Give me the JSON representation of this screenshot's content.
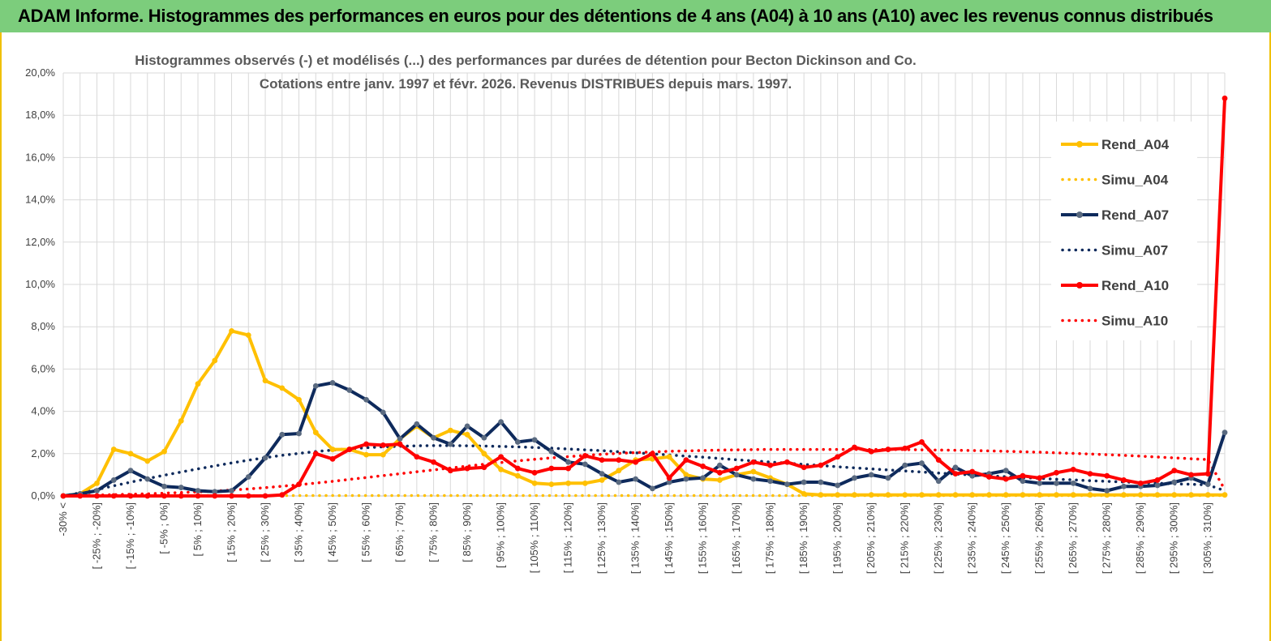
{
  "header": {
    "title": "ADAM Informe. Histogrammes des performances en euros pour des détentions de 4 ans (A04) à 10 ans (A10) avec les revenus connus distribués"
  },
  "colors": {
    "banner": "#7ccd7c",
    "A04": "#ffc000",
    "A07": "#0e2a5c",
    "A10": "#ff0000",
    "grid": "#d9d9d9"
  },
  "chart_data": {
    "type": "line",
    "title": [
      "Histogrammes observés (-)  et modélisés (...) des performances par durées de détention pour Becton Dickinson and Co.",
      "Cotations entre janv. 1997 et févr. 2026. Revenus DISTRIBUES depuis mars. 1997."
    ],
    "ylim": [
      0,
      20
    ],
    "yticks": [
      0,
      2,
      4,
      6,
      8,
      10,
      12,
      14,
      16,
      18,
      20
    ],
    "ytick_labels": [
      "0,0%",
      "2,0%",
      "4,0%",
      "6,0%",
      "8,0%",
      "10,0%",
      "12,0%",
      "14,0%",
      "16,0%",
      "18,0%",
      "20,0%"
    ],
    "categories": [
      "-30% <",
      "[ -30% ; -25%]",
      "[ -25% ; -20%]",
      "[ -20% ; -15%]",
      "[ -15% ; -10%]",
      "[ -10% ; -5%]",
      "[ -5% ; 0%]",
      "[ 0% ; 5%]",
      "[ 5% ; 10%]",
      "[ 10% ; 15%]",
      "[ 15% ; 20%]",
      "[ 20% ; 25%]",
      "[ 25% ; 30%]",
      "[ 30% ; 35%]",
      "[ 35% ; 40%]",
      "[ 40% ; 45%]",
      "[ 45% ; 50%]",
      "[ 50% ; 55%]",
      "[ 55% ; 60%]",
      "[ 60% ; 65%]",
      "[ 65% ; 70%]",
      "[ 70% ; 75%]",
      "[ 75% ; 80%]",
      "[ 80% ; 85%]",
      "[ 85% ; 90%]",
      "[ 90% ; 95%]",
      "[ 95% ; 100%]",
      "[ 100% ; 105%]",
      "[ 105% ; 110%]",
      "[ 110% ; 115%]",
      "[ 115% ; 120%]",
      "[ 120% ; 125%]",
      "[ 125% ; 130%]",
      "[ 130% ; 135%]",
      "[ 135% ; 140%]",
      "[ 140% ; 145%]",
      "[ 145% ; 150%]",
      "[ 150% ; 155%]",
      "[ 155% ; 160%]",
      "[ 160% ; 165%]",
      "[ 165% ; 170%]",
      "[ 170% ; 175%]",
      "[ 175% ; 180%]",
      "[ 180% ; 185%]",
      "[ 185% ; 190%]",
      "[ 190% ; 195%]",
      "[ 195% ; 200%]",
      "[ 200% ; 205%]",
      "[ 205% ; 210%]",
      "[ 210% ; 215%]",
      "[ 215% ; 220%]",
      "[ 220% ; 225%]",
      "[ 225% ; 230%]",
      "[ 230% ; 235%]",
      "[ 235% ; 240%]",
      "[ 240% ; 245%]",
      "[ 245% ; 250%]",
      "[ 250% ; 255%]",
      "[ 255% ; 260%]",
      "[ 260% ; 265%]",
      "[ 265% ; 270%]",
      "[ 270% ; 275%]",
      "[ 275% ; 280%]",
      "[ 280% ; 285%]",
      "[ 285% ; 290%]",
      "[ 290% ; 295%]",
      "[ 295% ; 300%]",
      "[ 300% ; 305%]",
      "[ 305% ; 310%]",
      "> 310%"
    ],
    "xtick_labels_visible": [
      "-30% <",
      "[ -25% ; -20%]",
      "[ -15% ; -10%]",
      "[ -5% ; 0%]",
      "[ 5% ; 10%]",
      "[ 15% ; 20%]",
      "[ 25% ; 30%]",
      "[ 35% ; 40%]",
      "[ 45% ; 50%]",
      "[ 55% ; 60%]",
      "[ 65% ; 70%]",
      "[ 75% ; 80%]",
      "[ 85% ; 90%]",
      "[ 95% ; 100%]",
      "[ 105% ; 110%]",
      "[ 115% ; 120%]",
      "[ 125% ; 130%]",
      "[ 135% ; 140%]",
      "[ 145% ; 150%]",
      "[ 155% ; 160%]",
      "[ 165% ; 170%]",
      "[ 175% ; 180%]",
      "[ 185% ; 190%]",
      "[ 195% ; 200%]",
      "[ 205% ; 210%]",
      "[ 215% ; 220%]",
      "[ 225% ; 230%]",
      "[ 235% ; 240%]",
      "[ 245% ; 250%]",
      "[ 255% ; 260%]",
      "[ 265% ; 270%]",
      "[ 275% ; 280%]",
      "[ 285% ; 290%]",
      "[ 295% ; 300%]",
      "[ 305% ; 310%]"
    ],
    "grid": true,
    "legend_position": "right",
    "series": [
      {
        "name": "Rend_A04",
        "style": "solid",
        "color": "#ffc000",
        "values": [
          0.0,
          0.1,
          0.6,
          2.2,
          2.0,
          1.65,
          2.1,
          3.55,
          5.3,
          6.4,
          7.8,
          7.6,
          5.45,
          5.1,
          4.55,
          3.0,
          2.2,
          2.2,
          1.95,
          1.95,
          2.7,
          3.3,
          2.75,
          3.1,
          2.9,
          2.0,
          1.25,
          0.95,
          0.6,
          0.55,
          0.6,
          0.6,
          0.75,
          1.2,
          1.7,
          1.75,
          1.85,
          1.0,
          0.8,
          0.75,
          1.0,
          1.15,
          0.85,
          0.55,
          0.1,
          0.05,
          0.05,
          0.05,
          0.05,
          0.05,
          0.05,
          0.05,
          0.05,
          0.05,
          0.05,
          0.05,
          0.05,
          0.05,
          0.05,
          0.05,
          0.05,
          0.05,
          0.05,
          0.05,
          0.05,
          0.05,
          0.05,
          0.05,
          0.05,
          0.05
        ]
      },
      {
        "name": "Simu_A04",
        "style": "dotted",
        "color": "#ffc000",
        "values": [
          0.02,
          0.02,
          0.02,
          0.02,
          0.02,
          0.02,
          0.02,
          0.02,
          0.02,
          0.02,
          0.02,
          0.02,
          0.02,
          0.02,
          0.02,
          0.02,
          0.02,
          0.02,
          0.02,
          0.02,
          0.02,
          0.02,
          0.02,
          0.02,
          0.02,
          0.02,
          0.02,
          0.02,
          0.02,
          0.02,
          0.02,
          0.02,
          0.02,
          0.02,
          0.02,
          0.02,
          0.02,
          0.02,
          0.02,
          0.02,
          0.02,
          0.02,
          0.02,
          0.02,
          0.02,
          0.02,
          0.02,
          0.02,
          0.02,
          0.02,
          0.02,
          0.02,
          0.02,
          0.02,
          0.02,
          0.02,
          0.02,
          0.02,
          0.02,
          0.02,
          0.02,
          0.02,
          0.02,
          0.02,
          0.02,
          0.02,
          0.02,
          0.02,
          0.02,
          0.02
        ]
      },
      {
        "name": "Rend_A07",
        "style": "solid",
        "color": "#0e2a5c",
        "values": [
          0.0,
          0.1,
          0.25,
          0.75,
          1.2,
          0.8,
          0.45,
          0.4,
          0.25,
          0.2,
          0.25,
          0.9,
          1.8,
          2.9,
          2.95,
          5.2,
          5.35,
          5.0,
          4.55,
          3.95,
          2.7,
          3.4,
          2.75,
          2.45,
          3.3,
          2.75,
          3.5,
          2.55,
          2.65,
          2.1,
          1.6,
          1.5,
          1.05,
          0.65,
          0.8,
          0.35,
          0.65,
          0.8,
          0.85,
          1.45,
          1.0,
          0.8,
          0.7,
          0.55,
          0.65,
          0.65,
          0.5,
          0.85,
          1.0,
          0.85,
          1.45,
          1.55,
          0.7,
          1.35,
          0.95,
          1.05,
          1.2,
          0.7,
          0.6,
          0.6,
          0.6,
          0.35,
          0.25,
          0.45,
          0.45,
          0.5,
          0.65,
          0.85,
          0.55,
          3.0
        ]
      },
      {
        "name": "Simu_A07",
        "style": "dotted",
        "color": "#0e2a5c",
        "values": [
          0.0,
          0.15,
          0.3,
          0.48,
          0.65,
          0.82,
          0.98,
          1.13,
          1.28,
          1.42,
          1.56,
          1.69,
          1.81,
          1.92,
          2.01,
          2.1,
          2.17,
          2.23,
          2.28,
          2.32,
          2.35,
          2.37,
          2.38,
          2.38,
          2.37,
          2.36,
          2.34,
          2.32,
          2.29,
          2.26,
          2.22,
          2.18,
          2.14,
          2.09,
          2.04,
          1.99,
          1.94,
          1.88,
          1.83,
          1.77,
          1.71,
          1.66,
          1.6,
          1.55,
          1.49,
          1.44,
          1.38,
          1.33,
          1.28,
          1.23,
          1.18,
          1.13,
          1.08,
          1.04,
          0.99,
          0.95,
          0.91,
          0.87,
          0.83,
          0.79,
          0.76,
          0.72,
          0.69,
          0.66,
          0.63,
          0.6,
          0.57,
          0.55,
          0.52,
          0.25
        ]
      },
      {
        "name": "Rend_A10",
        "style": "solid",
        "color": "#ff0000",
        "values": [
          0.0,
          0.0,
          0.0,
          0.0,
          0.0,
          0.0,
          0.0,
          0.0,
          0.0,
          0.0,
          0.0,
          0.0,
          0.0,
          0.05,
          0.55,
          2.0,
          1.75,
          2.2,
          2.45,
          2.4,
          2.45,
          1.85,
          1.6,
          1.2,
          1.3,
          1.35,
          1.85,
          1.3,
          1.1,
          1.3,
          1.3,
          1.9,
          1.7,
          1.7,
          1.6,
          2.0,
          0.85,
          1.7,
          1.4,
          1.1,
          1.3,
          1.6,
          1.45,
          1.6,
          1.35,
          1.45,
          1.85,
          2.3,
          2.1,
          2.2,
          2.25,
          2.55,
          1.7,
          1.05,
          1.15,
          0.9,
          0.8,
          0.95,
          0.85,
          1.1,
          1.25,
          1.05,
          0.95,
          0.75,
          0.6,
          0.75,
          1.2,
          1.0,
          1.05,
          18.8
        ]
      },
      {
        "name": "Simu_A10",
        "style": "dotted",
        "color": "#ff0000",
        "values": [
          0.0,
          0.02,
          0.04,
          0.06,
          0.08,
          0.1,
          0.13,
          0.16,
          0.19,
          0.23,
          0.28,
          0.33,
          0.39,
          0.46,
          0.53,
          0.61,
          0.69,
          0.78,
          0.87,
          0.96,
          1.05,
          1.14,
          1.23,
          1.32,
          1.41,
          1.5,
          1.58,
          1.66,
          1.73,
          1.8,
          1.86,
          1.92,
          1.97,
          2.01,
          2.05,
          2.08,
          2.11,
          2.13,
          2.15,
          2.17,
          2.18,
          2.19,
          2.2,
          2.2,
          2.2,
          2.2,
          2.2,
          2.2,
          2.2,
          2.19,
          2.19,
          2.18,
          2.17,
          2.16,
          2.15,
          2.13,
          2.11,
          2.09,
          2.07,
          2.04,
          2.01,
          1.98,
          1.95,
          1.92,
          1.88,
          1.84,
          1.8,
          1.76,
          1.72,
          0.3
        ]
      }
    ]
  }
}
